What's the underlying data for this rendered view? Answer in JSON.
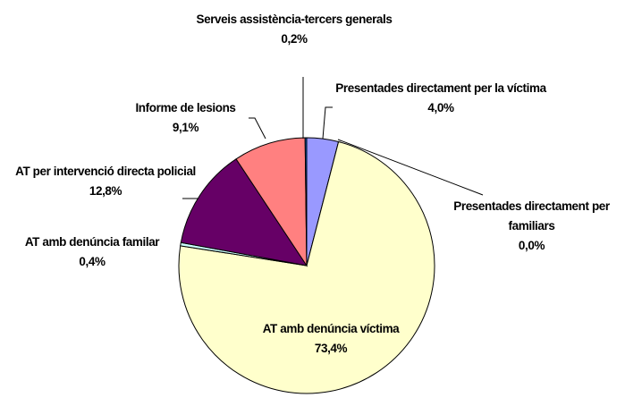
{
  "chart_data": {
    "type": "pie",
    "categories": [
      "Presentades directament per la víctima",
      "Presentades directament per familiars",
      "AT amb denúncia víctima",
      "AT amb denúncia familar",
      "AT per intervenció directa policial",
      "Informe de lesions",
      "Serveis assistència-tercers generals"
    ],
    "values": [
      4.0,
      0.0,
      73.4,
      0.4,
      12.8,
      9.1,
      0.2
    ],
    "value_labels": [
      "4,0%",
      "0,0%",
      "73,4%",
      "0,4%",
      "12,8%",
      "9,1%",
      "0,2%"
    ],
    "colors": [
      "#9999ff",
      "#993366",
      "#ffffcc",
      "#ccffff",
      "#660066",
      "#ff8080",
      "#0066cc"
    ]
  }
}
